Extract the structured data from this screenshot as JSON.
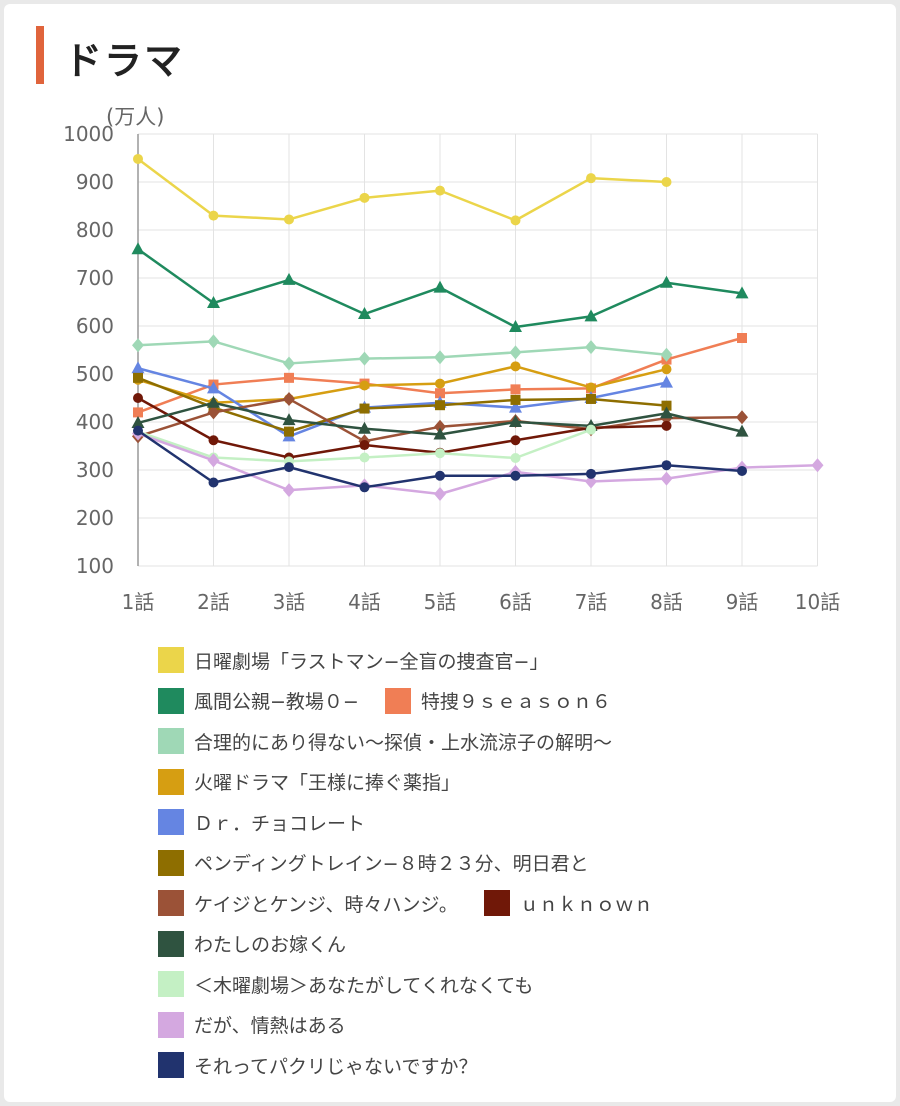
{
  "page": {
    "title": "ドラマ",
    "accent_color": "#e0643c"
  },
  "chart_data": {
    "type": "line",
    "title": "ドラマ",
    "ylabel": "(万人)",
    "xlabel": "",
    "ylim": [
      100,
      1000
    ],
    "yticks": [
      100,
      200,
      300,
      400,
      500,
      600,
      700,
      800,
      900,
      1000
    ],
    "categories": [
      "1話",
      "2話",
      "3話",
      "4話",
      "5話",
      "6話",
      "7話",
      "8話",
      "9話",
      "10話"
    ],
    "grid": true,
    "legend_position": "bottom",
    "series": [
      {
        "name": "日曜劇場「ラストマン−全盲の捜査官−」",
        "color": "#ebd54a",
        "marker": "circle",
        "values": [
          948,
          830,
          822,
          867,
          882,
          820,
          908,
          900,
          null,
          null
        ]
      },
      {
        "name": "風間公親−教場０−",
        "color": "#1f8a5e",
        "marker": "triangle",
        "values": [
          760,
          648,
          696,
          625,
          680,
          598,
          620,
          690,
          668,
          null
        ]
      },
      {
        "name": "特捜９ｓｅａｓｏｎ６",
        "color": "#f07e55",
        "marker": "square",
        "values": [
          420,
          478,
          492,
          480,
          460,
          468,
          470,
          530,
          575,
          null
        ]
      },
      {
        "name": "合理的にあり得ない〜探偵・上水流涼子の解明〜",
        "color": "#9fd8b6",
        "marker": "diamond",
        "values": [
          560,
          568,
          522,
          532,
          535,
          545,
          556,
          540,
          null,
          null
        ]
      },
      {
        "name": "火曜ドラマ「王様に捧ぐ薬指」",
        "color": "#d69e12",
        "marker": "circle",
        "values": [
          488,
          440,
          448,
          476,
          480,
          516,
          472,
          510,
          null,
          null
        ]
      },
      {
        "name": "Ｄｒ．チョコレート",
        "color": "#6585e2",
        "marker": "triangle",
        "values": [
          512,
          470,
          370,
          430,
          440,
          430,
          450,
          482,
          null,
          null
        ]
      },
      {
        "name": "ペンディングトレイン−８時２３分、明日君と",
        "color": "#8e6e00",
        "marker": "square",
        "values": [
          492,
          430,
          380,
          428,
          435,
          446,
          448,
          434,
          null,
          null
        ]
      },
      {
        "name": "ケイジとケンジ、時々ハンジ。",
        "color": "#9b5237",
        "marker": "diamond",
        "values": [
          370,
          420,
          448,
          360,
          390,
          402,
          385,
          408,
          410,
          null
        ]
      },
      {
        "name": "ｕｎｋｎｏｗｎ",
        "color": "#701808",
        "marker": "circle",
        "values": [
          450,
          362,
          326,
          352,
          336,
          362,
          388,
          392,
          null,
          null
        ]
      },
      {
        "name": "わたしのお嫁くん",
        "color": "#2f5340",
        "marker": "triangle",
        "values": [
          398,
          440,
          404,
          386,
          374,
          400,
          392,
          418,
          380,
          null
        ]
      },
      {
        "name": "＜木曜劇場＞あなたがしてくれなくても",
        "color": "#c4f0c4",
        "marker": "circle",
        "values": [
          380,
          326,
          318,
          326,
          335,
          325,
          384,
          null,
          null,
          null
        ]
      },
      {
        "name": "だが、情熱はある",
        "color": "#d4a8e0",
        "marker": "diamond",
        "values": [
          376,
          320,
          258,
          268,
          250,
          296,
          276,
          282,
          305,
          310
        ]
      },
      {
        "name": "それってパクリじゃないですか？",
        "color": "#21336e",
        "marker": "circle",
        "values": [
          382,
          274,
          306,
          264,
          288,
          288,
          292,
          310,
          298,
          null
        ]
      }
    ]
  },
  "legend_rows": [
    [
      0
    ],
    [
      1,
      2
    ],
    [
      3
    ],
    [
      4
    ],
    [
      5
    ],
    [
      6
    ],
    [
      7,
      8
    ],
    [
      9
    ],
    [
      10
    ],
    [
      11
    ],
    [
      12
    ]
  ]
}
